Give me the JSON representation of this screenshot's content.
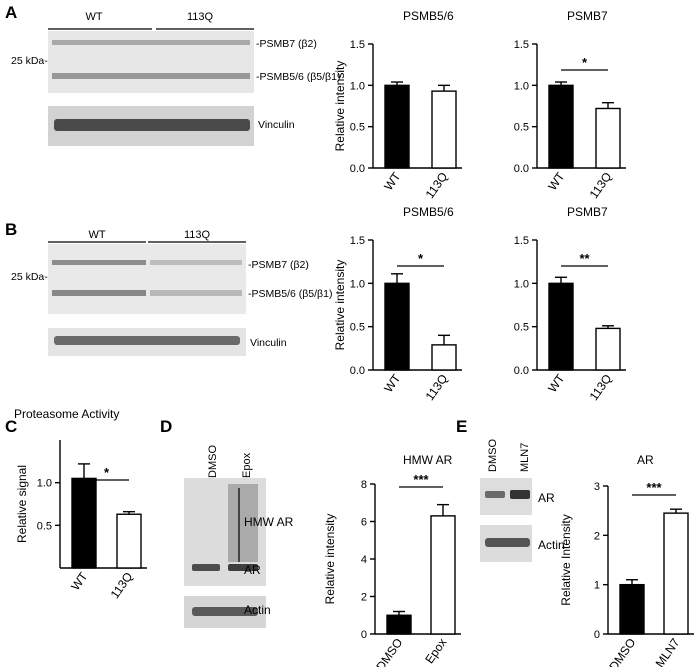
{
  "panels": {
    "A": {
      "label": "A",
      "blot": {
        "groups": [
          "WT",
          "113Q"
        ],
        "marker": "25 kDa-",
        "bands": [
          "-PSMB7 (β2)",
          "-PSMB5/6 (β5/β1)"
        ],
        "loading": "Vinculin"
      }
    },
    "B": {
      "label": "B",
      "blot": {
        "groups": [
          "WT",
          "113Q"
        ],
        "marker": "25 kDa-",
        "bands": [
          "-PSMB7 (β2)",
          "-PSMB5/6 (β5/β1)"
        ],
        "loading": "Vinculin"
      }
    },
    "C": {
      "label": "C"
    },
    "D": {
      "label": "D",
      "blot": {
        "lanes": [
          "DMSO",
          "Epox"
        ],
        "labels": [
          "HMW AR",
          "AR"
        ],
        "loading": "Actin"
      }
    },
    "E": {
      "label": "E",
      "blot": {
        "lanes": [
          "DMSO",
          "MLN7"
        ],
        "labels": [
          "AR"
        ],
        "loading": "Actin"
      }
    }
  },
  "chart_data": [
    {
      "id": "A1",
      "type": "bar",
      "title": "PSMB5/6",
      "ylabel": "Relative intensity",
      "categories": [
        "WT",
        "113Q"
      ],
      "values": [
        1.0,
        0.93
      ],
      "errors": [
        0.04,
        0.07
      ],
      "ylim": [
        0,
        1.5
      ],
      "yticks": [
        "0.0",
        "0.5",
        "1.0",
        "1.5"
      ],
      "significance": "",
      "colors": [
        "#000000",
        "#ffffff"
      ]
    },
    {
      "id": "A2",
      "type": "bar",
      "title": "PSMB7",
      "ylabel": "",
      "categories": [
        "WT",
        "113Q"
      ],
      "values": [
        1.0,
        0.72
      ],
      "errors": [
        0.04,
        0.07
      ],
      "ylim": [
        0,
        1.5
      ],
      "yticks": [
        "0.0",
        "0.5",
        "1.0",
        "1.5"
      ],
      "significance": "*",
      "colors": [
        "#000000",
        "#ffffff"
      ]
    },
    {
      "id": "B1",
      "type": "bar",
      "title": "PSMB5/6",
      "ylabel": "Relative intensity",
      "categories": [
        "WT",
        "113Q"
      ],
      "values": [
        1.0,
        0.29
      ],
      "errors": [
        0.11,
        0.11
      ],
      "ylim": [
        0,
        1.5
      ],
      "yticks": [
        "0.0",
        "0.5",
        "1.0",
        "1.5"
      ],
      "significance": "*",
      "colors": [
        "#000000",
        "#ffffff"
      ]
    },
    {
      "id": "B2",
      "type": "bar",
      "title": "PSMB7",
      "ylabel": "",
      "categories": [
        "WT",
        "113Q"
      ],
      "values": [
        1.0,
        0.48
      ],
      "errors": [
        0.07,
        0.03
      ],
      "ylim": [
        0,
        1.5
      ],
      "yticks": [
        "0.0",
        "0.5",
        "1.0",
        "1.5"
      ],
      "significance": "**",
      "colors": [
        "#000000",
        "#ffffff"
      ]
    },
    {
      "id": "C",
      "type": "bar",
      "title": "Proteasome Activity",
      "ylabel": "Relative signal",
      "categories": [
        "WT",
        "113Q"
      ],
      "values": [
        1.05,
        0.63
      ],
      "errors": [
        0.17,
        0.03
      ],
      "ylim": [
        0,
        1.5
      ],
      "yticks": [
        "0.5",
        "1.0"
      ],
      "significance": "*",
      "colors": [
        "#000000",
        "#ffffff"
      ]
    },
    {
      "id": "D",
      "type": "bar",
      "title": "HMW AR",
      "ylabel": "Relative intensity",
      "categories": [
        "DMSO",
        "Epox"
      ],
      "values": [
        1.0,
        6.3
      ],
      "errors": [
        0.2,
        0.6
      ],
      "ylim": [
        0,
        8
      ],
      "yticks": [
        "0",
        "2",
        "4",
        "6",
        "8"
      ],
      "significance": "***",
      "colors": [
        "#000000",
        "#ffffff"
      ]
    },
    {
      "id": "E",
      "type": "bar",
      "title": "AR",
      "ylabel": "Relative Intensity",
      "categories": [
        "DMSO",
        "MLN7"
      ],
      "values": [
        1.0,
        2.45
      ],
      "errors": [
        0.1,
        0.08
      ],
      "ylim": [
        0,
        3
      ],
      "yticks": [
        "0",
        "1",
        "2",
        "3"
      ],
      "significance": "***",
      "colors": [
        "#000000",
        "#ffffff"
      ]
    }
  ]
}
